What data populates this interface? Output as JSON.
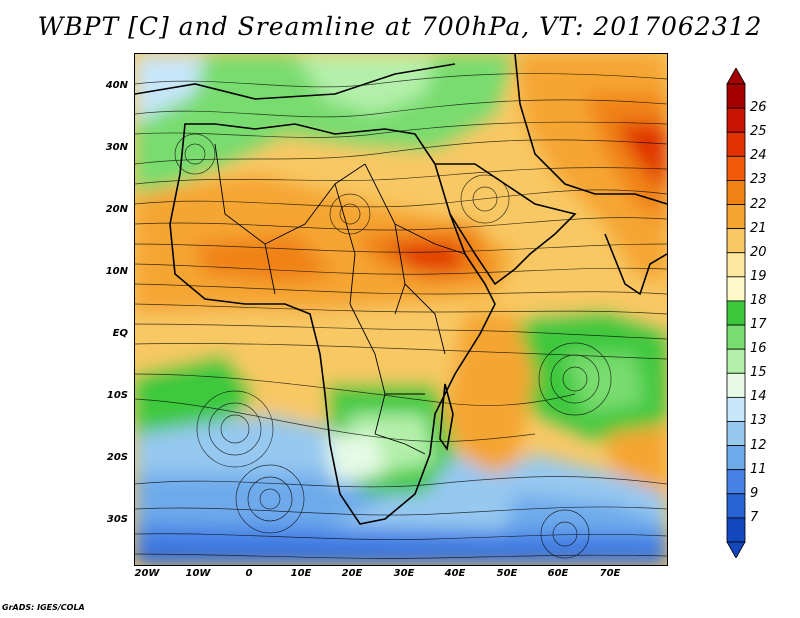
{
  "title": "WBPT [C] and Sreamline at 700hPa, VT: 2017062312",
  "credit": "GrADS: IGES/COLA",
  "map": {
    "lat_labels": [
      "40N",
      "30N",
      "20N",
      "10N",
      "EQ",
      "10S",
      "20S",
      "30S"
    ],
    "lon_labels": [
      "20W",
      "10W",
      "0",
      "10E",
      "20E",
      "30E",
      "40E",
      "50E",
      "60E",
      "70E"
    ],
    "field": "wet-bulb potential temperature",
    "overlay": "streamlines",
    "level": "700hPa",
    "valid_time": "2017062312"
  },
  "colorbar": {
    "labels": [
      "26",
      "25",
      "24",
      "23",
      "22",
      "21",
      "20",
      "19",
      "18",
      "17",
      "16",
      "15",
      "14",
      "13",
      "12",
      "11",
      "9",
      "7"
    ],
    "colors": [
      "#a50000",
      "#c81400",
      "#e03200",
      "#f05a0a",
      "#f08214",
      "#f5a532",
      "#f8c864",
      "#fce6a0",
      "#fff8c8",
      "#3cc83c",
      "#78dc6e",
      "#b4f0aa",
      "#e6fae6",
      "#c8e6fa",
      "#96c8f0",
      "#6eaaeb",
      "#4682e6",
      "#2864d2",
      "#1446be"
    ],
    "top_arrow_color": "#a50000",
    "bottom_arrow_color": "#1446be"
  }
}
